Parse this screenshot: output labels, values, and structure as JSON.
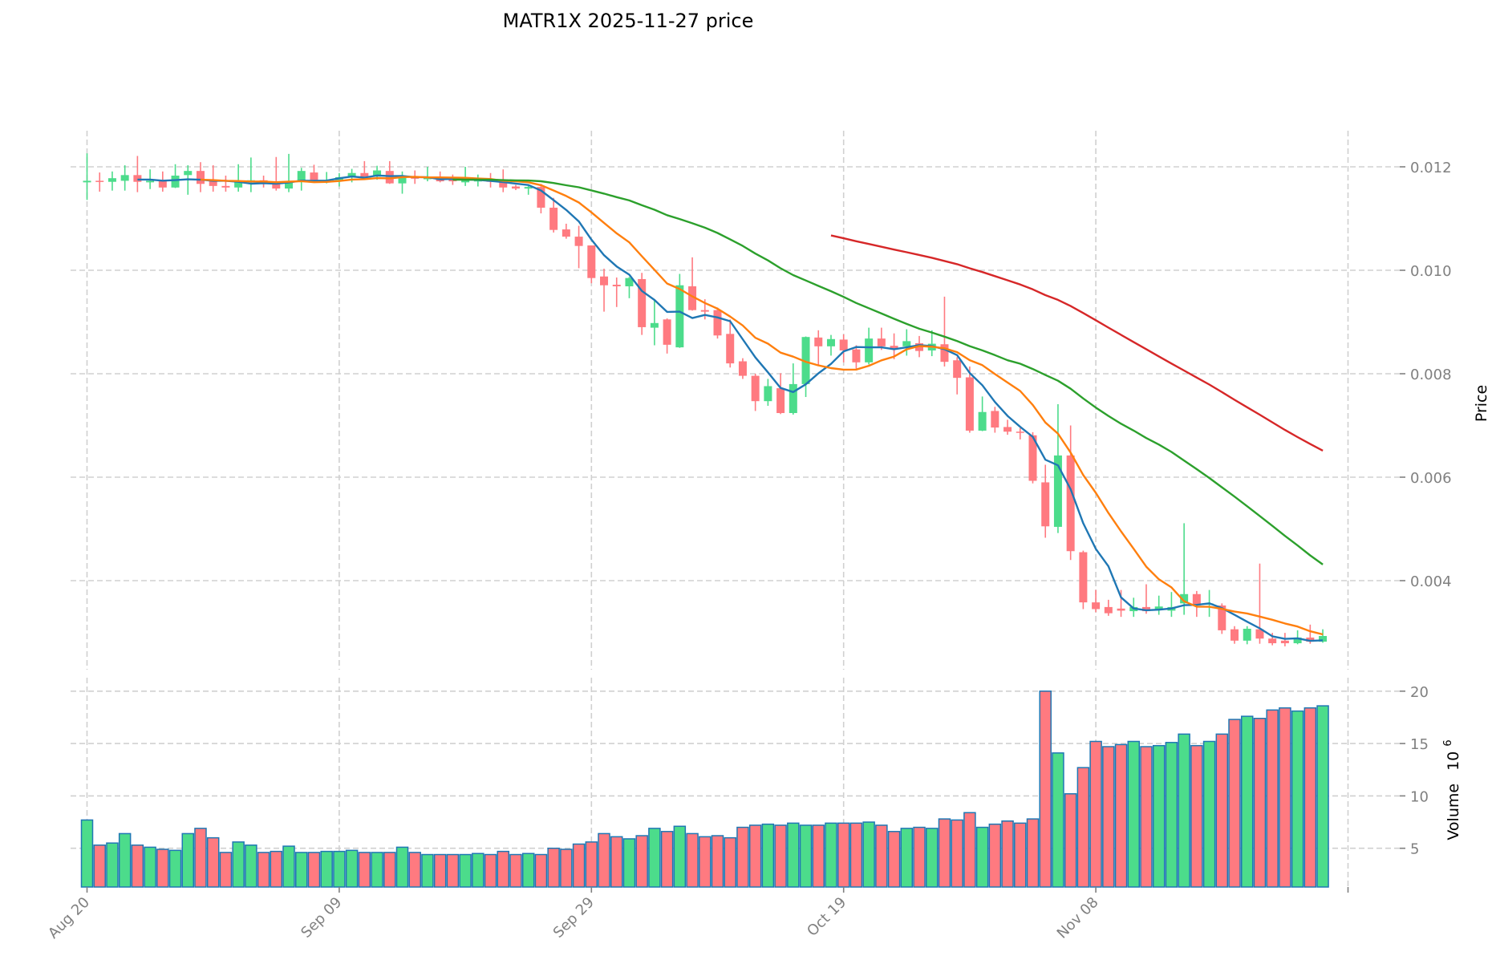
{
  "chart_data": {
    "type": "candlestick",
    "title": "MATR1X  2025-11-27  price",
    "ylabel": "Price",
    "volume_label": "Volume",
    "volume_scale_base": "10",
    "volume_scale_exp": "6",
    "start_date": "2025-08-20",
    "x_ticks": [
      {
        "day": 0,
        "label": "Aug 20"
      },
      {
        "day": 20,
        "label": "Sep 09"
      },
      {
        "day": 40,
        "label": "Sep 29"
      },
      {
        "day": 60,
        "label": "Oct 19"
      },
      {
        "day": 80,
        "label": "Nov 08"
      },
      {
        "day": 100,
        "label": ""
      }
    ],
    "price_ticks": [
      "0.004",
      "0.006",
      "0.008",
      "0.010",
      "0.012"
    ],
    "price_ylim": [
      0.0025,
      0.0128
    ],
    "volume_ticks": [
      "5",
      "10",
      "15",
      "20"
    ],
    "volume_ylim": [
      1.3,
      20.5
    ],
    "colors": {
      "up": "#4cdc8b",
      "down": "#ff7a80",
      "volume_edge": "#1f77b4",
      "ma5": "#1f77b4",
      "ma10": "#ff7f0e",
      "ma30": "#2ca02c",
      "ma60": "#d62728"
    },
    "moving_averages": [
      {
        "name": "MA5",
        "window": 5,
        "color_key": "ma5"
      },
      {
        "name": "MA10",
        "window": 10,
        "color_key": "ma10"
      },
      {
        "name": "MA30",
        "window": 30,
        "color_key": "ma30"
      },
      {
        "name": "MA60",
        "window": 60,
        "color_key": "ma60"
      }
    ],
    "ohlc_columns": [
      "open",
      "high",
      "low",
      "close"
    ],
    "ohlc": [
      [
        0.0117,
        0.01226,
        0.01136,
        0.01173
      ],
      [
        0.01173,
        0.01189,
        0.01152,
        0.01171
      ],
      [
        0.01171,
        0.01191,
        0.01154,
        0.01178
      ],
      [
        0.01173,
        0.01203,
        0.01154,
        0.01184
      ],
      [
        0.01184,
        0.01221,
        0.01151,
        0.01171
      ],
      [
        0.0117,
        0.01195,
        0.01157,
        0.01173
      ],
      [
        0.01173,
        0.01191,
        0.01152,
        0.0116
      ],
      [
        0.0116,
        0.01205,
        0.01159,
        0.01183
      ],
      [
        0.01184,
        0.01203,
        0.01146,
        0.01192
      ],
      [
        0.01192,
        0.01209,
        0.01151,
        0.01167
      ],
      [
        0.01173,
        0.01203,
        0.01152,
        0.01163
      ],
      [
        0.01163,
        0.01183,
        0.01152,
        0.0116
      ],
      [
        0.0116,
        0.01205,
        0.01152,
        0.01173
      ],
      [
        0.01172,
        0.01218,
        0.01151,
        0.01174
      ],
      [
        0.01174,
        0.01183,
        0.0116,
        0.01172
      ],
      [
        0.0117,
        0.01219,
        0.01154,
        0.01158
      ],
      [
        0.01158,
        0.01225,
        0.01151,
        0.01171
      ],
      [
        0.01172,
        0.01198,
        0.01154,
        0.01192
      ],
      [
        0.01189,
        0.01204,
        0.0117,
        0.01172
      ],
      [
        0.01172,
        0.0119,
        0.01168,
        0.01174
      ],
      [
        0.01174,
        0.01188,
        0.01162,
        0.0118
      ],
      [
        0.01181,
        0.01196,
        0.0117,
        0.01188
      ],
      [
        0.01188,
        0.01211,
        0.01175,
        0.01181
      ],
      [
        0.01181,
        0.01202,
        0.01175,
        0.01193
      ],
      [
        0.01192,
        0.01211,
        0.01167,
        0.01168
      ],
      [
        0.01168,
        0.01191,
        0.01148,
        0.01181
      ],
      [
        0.01181,
        0.01193,
        0.01167,
        0.01177
      ],
      [
        0.01176,
        0.012,
        0.01172,
        0.01181
      ],
      [
        0.0118,
        0.01191,
        0.0117,
        0.01172
      ],
      [
        0.01176,
        0.01185,
        0.01165,
        0.01172
      ],
      [
        0.0117,
        0.012,
        0.01163,
        0.01175
      ],
      [
        0.01173,
        0.01185,
        0.01162,
        0.01174
      ],
      [
        0.01174,
        0.01188,
        0.0116,
        0.01171
      ],
      [
        0.01171,
        0.01195,
        0.01151,
        0.0116
      ],
      [
        0.01162,
        0.01165,
        0.01155,
        0.01158
      ],
      [
        0.01158,
        0.01163,
        0.01146,
        0.01161
      ],
      [
        0.01161,
        0.01167,
        0.0111,
        0.01121
      ],
      [
        0.01121,
        0.0114,
        0.01073,
        0.01078
      ],
      [
        0.01079,
        0.0109,
        0.01061,
        0.01065
      ],
      [
        0.01065,
        0.01086,
        0.01004,
        0.01047
      ],
      [
        0.01048,
        0.01048,
        0.00975,
        0.00985
      ],
      [
        0.00988,
        0.01003,
        0.0092,
        0.00971
      ],
      [
        0.00972,
        0.00986,
        0.00929,
        0.00969
      ],
      [
        0.00969,
        0.00987,
        0.00946,
        0.00985
      ],
      [
        0.00983,
        0.00995,
        0.00875,
        0.0089
      ],
      [
        0.00889,
        0.00944,
        0.00855,
        0.00898
      ],
      [
        0.00905,
        0.00907,
        0.00839,
        0.00856
      ],
      [
        0.00851,
        0.00993,
        0.0085,
        0.00971
      ],
      [
        0.00969,
        0.01025,
        0.00922,
        0.00923
      ],
      [
        0.00923,
        0.00944,
        0.00905,
        0.0092
      ],
      [
        0.00923,
        0.00928,
        0.00868,
        0.00874
      ],
      [
        0.00877,
        0.00905,
        0.00812,
        0.0082
      ],
      [
        0.00824,
        0.0083,
        0.0079,
        0.00796
      ],
      [
        0.00796,
        0.008,
        0.00728,
        0.00747
      ],
      [
        0.00747,
        0.0079,
        0.00738,
        0.00776
      ],
      [
        0.00772,
        0.00801,
        0.00722,
        0.00724
      ],
      [
        0.00724,
        0.0082,
        0.00721,
        0.0078
      ],
      [
        0.0078,
        0.00872,
        0.00755,
        0.00871
      ],
      [
        0.0087,
        0.00884,
        0.00817,
        0.00853
      ],
      [
        0.00853,
        0.00875,
        0.00835,
        0.00867
      ],
      [
        0.00866,
        0.00876,
        0.00822,
        0.00845
      ],
      [
        0.00847,
        0.00855,
        0.0081,
        0.00822
      ],
      [
        0.00822,
        0.00889,
        0.00818,
        0.00868
      ],
      [
        0.00868,
        0.00889,
        0.00846,
        0.00853
      ],
      [
        0.00854,
        0.00878,
        0.00828,
        0.00849
      ],
      [
        0.00853,
        0.00886,
        0.00835,
        0.00863
      ],
      [
        0.00859,
        0.00873,
        0.00832,
        0.00844
      ],
      [
        0.00845,
        0.00884,
        0.00834,
        0.00858
      ],
      [
        0.00857,
        0.00949,
        0.00814,
        0.00823
      ],
      [
        0.00826,
        0.00832,
        0.0076,
        0.00792
      ],
      [
        0.00793,
        0.00814,
        0.00686,
        0.0069
      ],
      [
        0.0069,
        0.00756,
        0.00689,
        0.00726
      ],
      [
        0.00728,
        0.00736,
        0.00686,
        0.00696
      ],
      [
        0.00697,
        0.00711,
        0.00682,
        0.00688
      ],
      [
        0.00688,
        0.00695,
        0.00673,
        0.00687
      ],
      [
        0.00681,
        0.00687,
        0.00588,
        0.00593
      ],
      [
        0.0059,
        0.00624,
        0.00483,
        0.00505
      ],
      [
        0.00504,
        0.00741,
        0.00492,
        0.00642
      ],
      [
        0.00642,
        0.007,
        0.0044,
        0.00457
      ],
      [
        0.00455,
        0.00458,
        0.00345,
        0.00358
      ],
      [
        0.00358,
        0.00382,
        0.00339,
        0.00345
      ],
      [
        0.00349,
        0.00363,
        0.00332,
        0.00337
      ],
      [
        0.00346,
        0.00382,
        0.0033,
        0.00342
      ],
      [
        0.00341,
        0.00367,
        0.0033,
        0.00349
      ],
      [
        0.00349,
        0.00393,
        0.00336,
        0.00341
      ],
      [
        0.00343,
        0.00371,
        0.00334,
        0.0035
      ],
      [
        0.00342,
        0.00378,
        0.0033,
        0.00349
      ],
      [
        0.00356,
        0.00511,
        0.00334,
        0.00374
      ],
      [
        0.00374,
        0.0038,
        0.0033,
        0.00352
      ],
      [
        0.00355,
        0.00382,
        0.0033,
        0.00356
      ],
      [
        0.00352,
        0.00356,
        0.00297,
        0.00304
      ],
      [
        0.00306,
        0.00312,
        0.00278,
        0.00284
      ],
      [
        0.00284,
        0.00312,
        0.00277,
        0.00307
      ],
      [
        0.00306,
        0.00433,
        0.00278,
        0.00288
      ],
      [
        0.00288,
        0.00299,
        0.00275,
        0.00279
      ],
      [
        0.00284,
        0.00299,
        0.00273,
        0.00279
      ],
      [
        0.00279,
        0.00304,
        0.00277,
        0.0029
      ],
      [
        0.0029,
        0.00315,
        0.00278,
        0.00282
      ],
      [
        0.00282,
        0.00306,
        0.0028,
        0.00293
      ]
    ],
    "volume_millions": [
      7.7,
      5.3,
      5.5,
      6.4,
      5.3,
      5.1,
      4.9,
      4.8,
      6.4,
      6.9,
      6.0,
      4.6,
      5.6,
      5.3,
      4.6,
      4.7,
      5.2,
      4.6,
      4.6,
      4.7,
      4.7,
      4.8,
      4.6,
      4.6,
      4.6,
      5.1,
      4.6,
      4.4,
      4.4,
      4.4,
      4.4,
      4.5,
      4.4,
      4.7,
      4.4,
      4.5,
      4.4,
      5.0,
      4.9,
      5.4,
      5.6,
      6.4,
      6.1,
      5.9,
      6.2,
      6.9,
      6.6,
      7.1,
      6.4,
      6.1,
      6.2,
      6.0,
      7.0,
      7.2,
      7.3,
      7.2,
      7.4,
      7.2,
      7.2,
      7.4,
      7.4,
      7.4,
      7.5,
      7.2,
      6.6,
      6.9,
      7.0,
      6.9,
      7.8,
      7.7,
      8.4,
      7.0,
      7.3,
      7.6,
      7.4,
      7.8,
      20.0,
      14.1,
      10.2,
      12.7,
      15.2,
      14.7,
      14.9,
      15.2,
      14.7,
      14.8,
      15.1,
      15.9,
      14.8,
      15.2,
      15.9,
      17.3,
      17.6,
      17.4,
      18.2,
      18.4,
      18.1,
      18.4,
      18.6
    ]
  }
}
